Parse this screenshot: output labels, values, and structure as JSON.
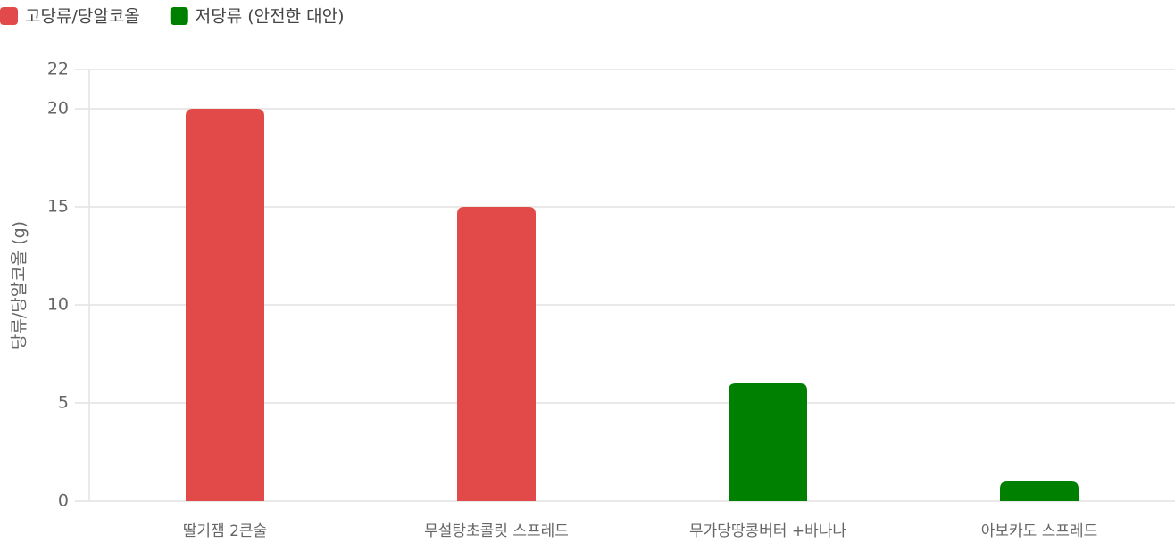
{
  "chart_data": {
    "type": "bar",
    "y_label": "당류/당알코올 (g)",
    "categories": [
      "딸기잼 2큰술",
      "무설탕초콜릿 스프레드",
      "무가당땅콩버터 +바나나",
      "아보카도 스프레드"
    ],
    "series": [
      {
        "name": "고당류/당알코올",
        "color": "#e24a4a",
        "values": [
          20,
          15,
          null,
          null
        ]
      },
      {
        "name": "저당류 (안전한 대안)",
        "color": "#008000",
        "values": [
          null,
          null,
          6,
          1
        ]
      }
    ],
    "ylim": [
      0,
      22
    ],
    "yticks": [
      0,
      5,
      10,
      15,
      20,
      22
    ],
    "grid": true
  }
}
